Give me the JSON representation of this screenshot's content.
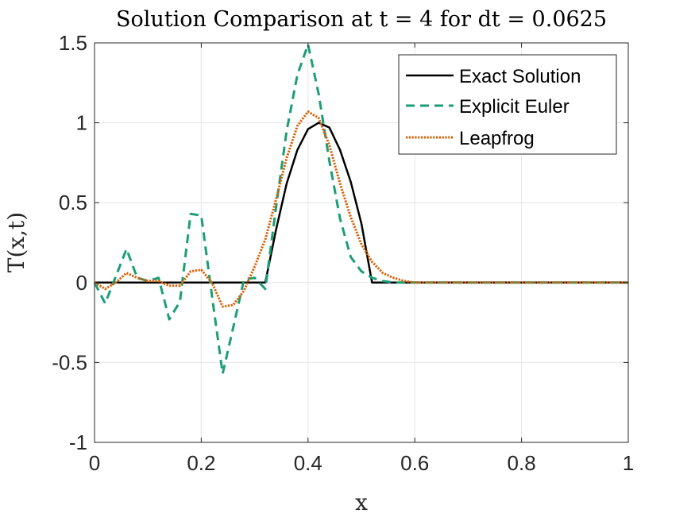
{
  "chart_data": {
    "type": "line",
    "title": "Solution Comparison at t = 4 for dt = 0.0625",
    "xlabel": "x",
    "ylabel": "T(x,t)",
    "xlim": [
      0,
      1
    ],
    "ylim": [
      -1,
      1.5
    ],
    "xticks": [
      0,
      0.2,
      0.4,
      0.6,
      0.8,
      1
    ],
    "xtick_labels": [
      "0",
      "0.2",
      "0.4",
      "0.6",
      "0.8",
      "1"
    ],
    "yticks": [
      -1,
      -0.5,
      0,
      0.5,
      1,
      1.5
    ],
    "ytick_labels": [
      "-1",
      "-0.5",
      "0",
      "0.5",
      "1",
      "1.5"
    ],
    "grid": true,
    "legend_position": "top-right",
    "series": [
      {
        "name": "Exact Solution",
        "color": "#000000",
        "dash": "solid",
        "x": [
          0,
          0.3,
          0.32,
          0.34,
          0.36,
          0.38,
          0.4,
          0.42,
          0.44,
          0.46,
          0.48,
          0.5,
          0.52,
          0.54,
          0.6,
          0.8,
          1.0
        ],
        "y": [
          0,
          0,
          0,
          0.33,
          0.62,
          0.83,
          0.96,
          1.0,
          0.97,
          0.83,
          0.63,
          0.37,
          0,
          0,
          0,
          0,
          0
        ]
      },
      {
        "name": "Explicit Euler",
        "color": "#1b9e77",
        "dash": "dashed",
        "x": [
          0,
          0.02,
          0.04,
          0.06,
          0.08,
          0.1,
          0.12,
          0.14,
          0.16,
          0.18,
          0.2,
          0.22,
          0.24,
          0.26,
          0.28,
          0.3,
          0.32,
          0.34,
          0.36,
          0.38,
          0.4,
          0.42,
          0.44,
          0.46,
          0.48,
          0.5,
          0.52,
          0.54,
          0.56,
          0.58,
          0.6,
          0.8,
          1.0
        ],
        "y": [
          0,
          -0.13,
          0.04,
          0.21,
          0.03,
          0.01,
          0.03,
          -0.23,
          -0.12,
          0.43,
          0.42,
          -0.08,
          -0.57,
          -0.28,
          0.02,
          0.03,
          -0.04,
          0.47,
          0.95,
          1.3,
          1.49,
          1.18,
          0.76,
          0.4,
          0.16,
          0.07,
          0.03,
          0.01,
          0,
          0,
          0,
          0,
          0
        ]
      },
      {
        "name": "Leapfrog",
        "color": "#d95f02",
        "dash": "dotted",
        "x": [
          0,
          0.02,
          0.04,
          0.06,
          0.08,
          0.1,
          0.12,
          0.14,
          0.16,
          0.18,
          0.2,
          0.22,
          0.24,
          0.26,
          0.28,
          0.3,
          0.32,
          0.34,
          0.36,
          0.38,
          0.4,
          0.42,
          0.44,
          0.46,
          0.48,
          0.5,
          0.52,
          0.54,
          0.56,
          0.58,
          0.6,
          0.62,
          0.8,
          1.0
        ],
        "y": [
          0,
          -0.04,
          0.0,
          0.06,
          0.03,
          0.01,
          0.01,
          -0.02,
          -0.02,
          0.07,
          0.08,
          0.0,
          -0.15,
          -0.14,
          -0.05,
          0.1,
          0.27,
          0.52,
          0.78,
          0.98,
          1.07,
          1.03,
          0.86,
          0.62,
          0.41,
          0.24,
          0.13,
          0.06,
          0.03,
          0.01,
          0,
          0,
          0,
          0
        ]
      }
    ]
  }
}
